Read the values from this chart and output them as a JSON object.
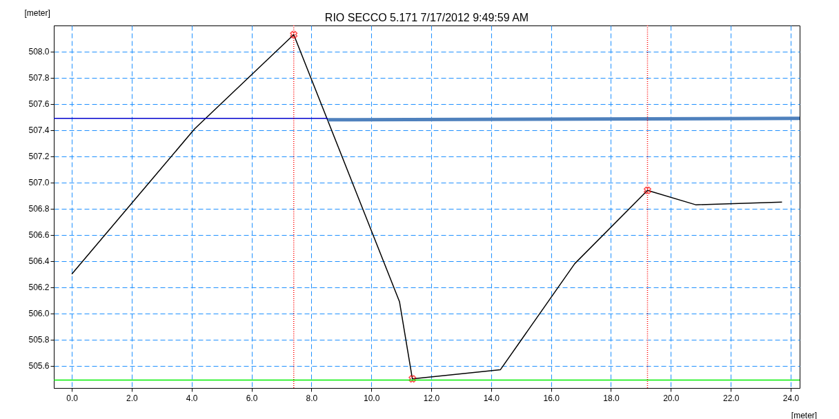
{
  "chart_data": {
    "type": "line",
    "title": "RIO SECCO  5.171  7/17/2012 9:49:59 AM",
    "xlabel": "[meter]",
    "ylabel": "[meter]",
    "xlim": [
      -0.6,
      24.3
    ],
    "ylim": [
      505.43,
      508.2
    ],
    "xticks": [
      {
        "value": 0,
        "label": "0.0"
      },
      {
        "value": 2,
        "label": "2.0"
      },
      {
        "value": 4,
        "label": "4.0"
      },
      {
        "value": 6,
        "label": "6.0"
      },
      {
        "value": 8,
        "label": "8.0"
      },
      {
        "value": 10,
        "label": "10.0"
      },
      {
        "value": 12,
        "label": "12.0"
      },
      {
        "value": 14,
        "label": "14.0"
      },
      {
        "value": 16,
        "label": "16.0"
      },
      {
        "value": 18,
        "label": "18.0"
      },
      {
        "value": 20,
        "label": "20.0"
      },
      {
        "value": 22,
        "label": "22.0"
      },
      {
        "value": 24,
        "label": "24.0"
      }
    ],
    "yticks": [
      505.6,
      505.8,
      {
        "value": 506,
        "label": "506.0"
      },
      506.2,
      506.4,
      506.6,
      506.8,
      {
        "value": 507,
        "label": "507.0"
      },
      507.2,
      507.4,
      507.6,
      507.8,
      {
        "value": 508,
        "label": "508.0"
      }
    ],
    "grid": true,
    "series": [
      {
        "color": "#000000",
        "x": [
          0,
          4.1,
          7.41,
          10.94,
          11.37,
          14.31,
          16.79,
          19.22,
          20.83,
          23.71
        ],
        "values": [
          506.3,
          507.41,
          508.13,
          506.09,
          505.5,
          505.57,
          506.38,
          506.94,
          506.83,
          506.85
        ]
      },
      {
        "color": "#0000cc",
        "x": [
          -0.6,
          8.55
        ],
        "values": [
          507.49,
          507.49
        ]
      },
      {
        "color": "#4f81bd",
        "x": [
          8.55,
          24.3
        ],
        "values": [
          507.48,
          507.49
        ]
      },
      {
        "type": "scatter",
        "marker": "cross",
        "color": "#ff0000",
        "x": [
          7.41,
          11.37,
          19.22
        ],
        "values": [
          508.13,
          505.5,
          506.94
        ]
      }
    ],
    "ref_lines": [
      {
        "axis": "x",
        "value": 7.41,
        "color": "#ff0000",
        "line_style": "dotted"
      },
      {
        "axis": "x",
        "value": 19.22,
        "color": "#ff0000",
        "line_style": "dotted"
      },
      {
        "axis": "y",
        "value": 505.49,
        "color": "#00ee00",
        "line_style": "solid"
      }
    ]
  }
}
